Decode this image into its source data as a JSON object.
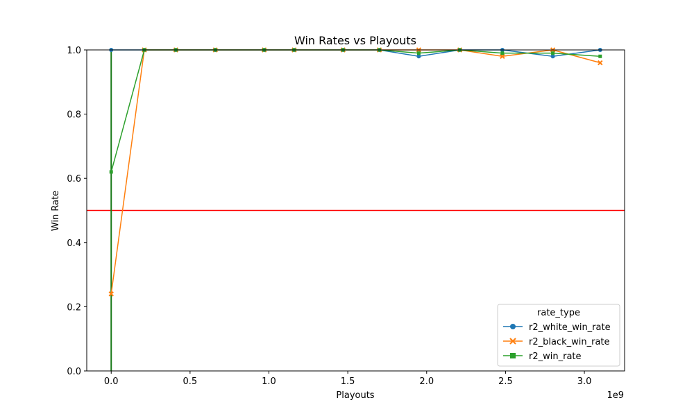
{
  "chart_data": {
    "type": "line",
    "title": "Win Rates vs Playouts",
    "xlabel": "Playouts",
    "ylabel": "Win Rate",
    "x_offset_label": "1e9",
    "xlim": [
      -0.155,
      3.255
    ],
    "ylim": [
      0.0,
      1.0
    ],
    "x_ticks": [
      0.0,
      0.5,
      1.0,
      1.5,
      2.0,
      2.5,
      3.0
    ],
    "x_tick_labels": [
      "0.0",
      "0.5",
      "1.0",
      "1.5",
      "2.0",
      "2.5",
      "3.0"
    ],
    "y_ticks": [
      0.0,
      0.2,
      0.4,
      0.6,
      0.8,
      1.0
    ],
    "y_tick_labels": [
      "0.0",
      "0.2",
      "0.4",
      "0.6",
      "0.8",
      "1.0"
    ],
    "grid": false,
    "legend": {
      "title": "rate_type",
      "placement": "lower right"
    },
    "reference_line": {
      "y": 0.5,
      "color": "#ff0000"
    },
    "vertical_line": {
      "x": 0.0,
      "y_from": 0.0,
      "y_to": 1.0,
      "color": "#1a7a1a"
    },
    "x": [
      0.0,
      0.21,
      0.41,
      0.66,
      0.97,
      1.16,
      1.47,
      1.7,
      1.95,
      2.21,
      2.48,
      2.8,
      3.1
    ],
    "series": [
      {
        "name": "r2_white_win_rate",
        "color": "#1f77b4",
        "marker": "circle",
        "values": [
          1.0,
          1.0,
          1.0,
          1.0,
          1.0,
          1.0,
          1.0,
          1.0,
          0.98,
          1.0,
          1.0,
          0.98,
          1.0
        ]
      },
      {
        "name": "r2_black_win_rate",
        "color": "#ff7f0e",
        "marker": "x",
        "values": [
          0.24,
          1.0,
          1.0,
          1.0,
          1.0,
          1.0,
          1.0,
          1.0,
          1.0,
          1.0,
          0.98,
          1.0,
          0.96
        ]
      },
      {
        "name": "r2_win_rate",
        "color": "#2ca02c",
        "marker": "square",
        "values": [
          0.62,
          1.0,
          1.0,
          1.0,
          1.0,
          1.0,
          1.0,
          1.0,
          0.99,
          1.0,
          0.99,
          0.99,
          0.98
        ]
      }
    ]
  }
}
